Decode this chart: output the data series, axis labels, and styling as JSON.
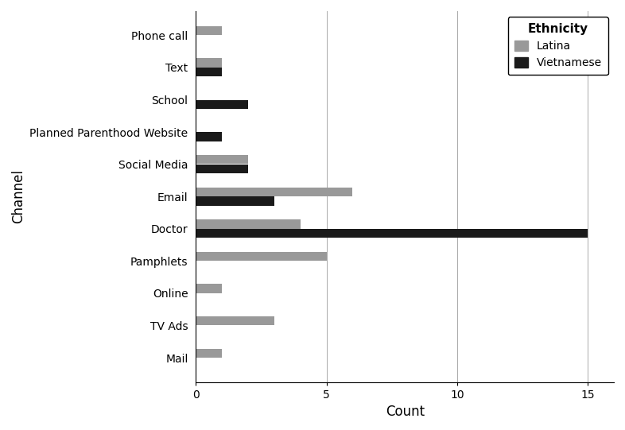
{
  "categories": [
    "Phone call",
    "Text",
    "School",
    "Planned Parenthood Website",
    "Social Media",
    "Email",
    "Doctor",
    "Pamphlets",
    "Online",
    "TV Ads",
    "Mail"
  ],
  "latina": [
    1,
    1,
    0,
    0,
    2,
    6,
    4,
    5,
    1,
    3,
    1
  ],
  "vietnamese": [
    0,
    1,
    2,
    1,
    2,
    3,
    15,
    0,
    0,
    0,
    0
  ],
  "latina_color": "#999999",
  "vietnamese_color": "#1a1a1a",
  "xlabel": "Count",
  "ylabel": "Channel",
  "legend_title": "Ethnicity",
  "legend_labels": [
    "Latina",
    "Vietnamese"
  ],
  "xlim": [
    0,
    16
  ],
  "xticks": [
    0,
    5,
    10,
    15
  ],
  "background_color": "#ffffff",
  "bar_height": 0.28,
  "bar_gap": 0.01,
  "grid_color": "#aaaaaa"
}
